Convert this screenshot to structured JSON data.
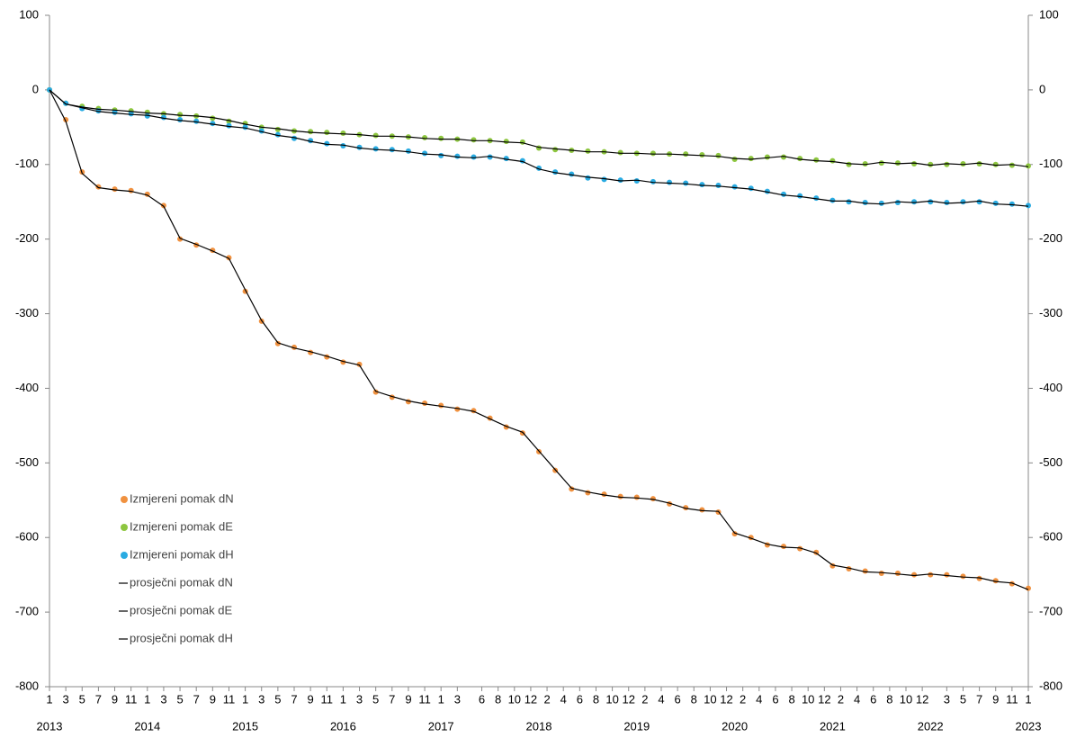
{
  "chart_data": {
    "type": "scatter",
    "x": [
      "2013-01",
      "2013-03",
      "2013-05",
      "2013-07",
      "2013-09",
      "2013-11",
      "2014-01",
      "2014-03",
      "2014-05",
      "2014-07",
      "2014-09",
      "2014-11",
      "2015-01",
      "2015-03",
      "2015-05",
      "2015-07",
      "2015-09",
      "2015-11",
      "2016-01",
      "2016-03",
      "2016-05",
      "2016-07",
      "2016-09",
      "2016-11",
      "2017-01",
      "2017-03",
      "2017-05",
      "2017-07",
      "2017-09",
      "2017-11",
      "2018-01",
      "2018-03",
      "2018-05",
      "2018-07",
      "2018-09",
      "2018-11",
      "2019-01",
      "2019-03",
      "2019-05",
      "2019-07",
      "2019-09",
      "2019-11",
      "2020-01",
      "2020-03",
      "2020-05",
      "2020-07",
      "2020-09",
      "2020-11",
      "2021-01",
      "2021-03",
      "2021-05",
      "2021-07",
      "2021-09",
      "2021-11",
      "2022-01",
      "2022-03",
      "2022-05",
      "2022-07",
      "2022-09",
      "2022-11",
      "2023-01"
    ],
    "xlim": [
      "2013-01",
      "2023-01"
    ],
    "xticks": [
      {
        "value": "2013-01",
        "label": "1"
      },
      {
        "value": "2013-03",
        "label": "3"
      },
      {
        "value": "2013-05",
        "label": "5"
      },
      {
        "value": "2013-07",
        "label": "7"
      },
      {
        "value": "2013-09",
        "label": "9"
      },
      {
        "value": "2013-11",
        "label": "11"
      },
      {
        "value": "2014-01",
        "label": "1"
      },
      {
        "value": "2014-03",
        "label": "3"
      },
      {
        "value": "2014-05",
        "label": "5"
      },
      {
        "value": "2014-07",
        "label": "7"
      },
      {
        "value": "2014-09",
        "label": "9"
      },
      {
        "value": "2014-11",
        "label": "11"
      },
      {
        "value": "2015-01",
        "label": "1"
      },
      {
        "value": "2015-03",
        "label": "3"
      },
      {
        "value": "2015-05",
        "label": "5"
      },
      {
        "value": "2015-07",
        "label": "7"
      },
      {
        "value": "2015-09",
        "label": "9"
      },
      {
        "value": "2015-11",
        "label": "11"
      },
      {
        "value": "2016-01",
        "label": "1"
      },
      {
        "value": "2016-03",
        "label": "3"
      },
      {
        "value": "2016-05",
        "label": "5"
      },
      {
        "value": "2016-07",
        "label": "7"
      },
      {
        "value": "2016-09",
        "label": "9"
      },
      {
        "value": "2016-11",
        "label": "11"
      },
      {
        "value": "2017-01",
        "label": "1"
      },
      {
        "value": "2017-03",
        "label": "3"
      },
      {
        "value": "2017-06",
        "label": "6"
      },
      {
        "value": "2017-08",
        "label": "8"
      },
      {
        "value": "2017-10",
        "label": "10"
      },
      {
        "value": "2017-12",
        "label": "12"
      },
      {
        "value": "2018-02",
        "label": "2"
      },
      {
        "value": "2018-04",
        "label": "4"
      },
      {
        "value": "2018-06",
        "label": "6"
      },
      {
        "value": "2018-08",
        "label": "8"
      },
      {
        "value": "2018-10",
        "label": "10"
      },
      {
        "value": "2018-12",
        "label": "12"
      },
      {
        "value": "2019-02",
        "label": "2"
      },
      {
        "value": "2019-04",
        "label": "4"
      },
      {
        "value": "2019-06",
        "label": "6"
      },
      {
        "value": "2019-08",
        "label": "8"
      },
      {
        "value": "2019-10",
        "label": "10"
      },
      {
        "value": "2019-12",
        "label": "12"
      },
      {
        "value": "2020-02",
        "label": "2"
      },
      {
        "value": "2020-04",
        "label": "4"
      },
      {
        "value": "2020-06",
        "label": "6"
      },
      {
        "value": "2020-08",
        "label": "8"
      },
      {
        "value": "2020-10",
        "label": "10"
      },
      {
        "value": "2020-12",
        "label": "12"
      },
      {
        "value": "2021-02",
        "label": "2"
      },
      {
        "value": "2021-04",
        "label": "4"
      },
      {
        "value": "2021-06",
        "label": "6"
      },
      {
        "value": "2021-08",
        "label": "8"
      },
      {
        "value": "2021-10",
        "label": "10"
      },
      {
        "value": "2021-12",
        "label": "12"
      },
      {
        "value": "2022-03",
        "label": "3"
      },
      {
        "value": "2022-05",
        "label": "5"
      },
      {
        "value": "2022-07",
        "label": "7"
      },
      {
        "value": "2022-09",
        "label": "9"
      },
      {
        "value": "2022-11",
        "label": "11"
      },
      {
        "value": "2023-01",
        "label": "1"
      }
    ],
    "year_labels": [
      {
        "value": "2013-01",
        "label": "2013"
      },
      {
        "value": "2014-01",
        "label": "2014"
      },
      {
        "value": "2015-01",
        "label": "2015"
      },
      {
        "value": "2016-01",
        "label": "2016"
      },
      {
        "value": "2017-01",
        "label": "2017"
      },
      {
        "value": "2018-01",
        "label": "2018"
      },
      {
        "value": "2019-01",
        "label": "2019"
      },
      {
        "value": "2020-01",
        "label": "2020"
      },
      {
        "value": "2021-01",
        "label": "2021"
      },
      {
        "value": "2022-01",
        "label": "2022"
      },
      {
        "value": "2023-01",
        "label": "2023"
      }
    ],
    "ylim": [
      -800,
      100
    ],
    "yticks": [
      -800,
      -700,
      -600,
      -500,
      -400,
      -300,
      -200,
      -100,
      0,
      100
    ],
    "y2lim": [
      -800,
      100
    ],
    "y2ticks": [
      -800,
      -700,
      -600,
      -500,
      -400,
      -300,
      -200,
      -100,
      0,
      100
    ],
    "legend": "lower-left",
    "series": [
      {
        "name": "Izmjereni pomak dN",
        "type": "scatter",
        "color": "#f0913f",
        "values": [
          0,
          -40,
          -110,
          -130,
          -133,
          -135,
          -140,
          -155,
          -200,
          -208,
          -215,
          -225,
          -270,
          -310,
          -340,
          -345,
          -352,
          -358,
          -365,
          -368,
          -405,
          -412,
          -418,
          -420,
          -423,
          -428,
          -430,
          -440,
          -452,
          -460,
          -485,
          -510,
          -535,
          -540,
          -542,
          -545,
          -546,
          -548,
          -555,
          -560,
          -563,
          -566,
          -595,
          -600,
          -610,
          -612,
          -615,
          -620,
          -638,
          -642,
          -645,
          -648,
          -648,
          -650,
          -650,
          -650,
          -652,
          -655,
          -658,
          -662,
          -668
        ]
      },
      {
        "name": "Izmjereni pomak dE",
        "type": "scatter",
        "color": "#8dc63f",
        "values": [
          0,
          -18,
          -22,
          -25,
          -27,
          -28,
          -30,
          -32,
          -33,
          -35,
          -38,
          -42,
          -45,
          -50,
          -53,
          -55,
          -56,
          -57,
          -58,
          -60,
          -61,
          -62,
          -63,
          -64,
          -65,
          -66,
          -67,
          -68,
          -69,
          -70,
          -78,
          -80,
          -81,
          -82,
          -83,
          -84,
          -85,
          -85,
          -86,
          -86,
          -87,
          -88,
          -93,
          -92,
          -90,
          -90,
          -92,
          -94,
          -95,
          -100,
          -99,
          -98,
          -98,
          -99,
          -100,
          -100,
          -99,
          -99,
          -100,
          -101,
          -102
        ]
      },
      {
        "name": "Izmjereni pomak dH",
        "type": "scatter",
        "color": "#29abe2",
        "values": [
          0,
          -18,
          -25,
          -28,
          -30,
          -32,
          -35,
          -37,
          -40,
          -42,
          -45,
          -48,
          -50,
          -55,
          -60,
          -65,
          -68,
          -72,
          -75,
          -77,
          -79,
          -80,
          -82,
          -85,
          -88,
          -89,
          -90,
          -90,
          -92,
          -95,
          -105,
          -110,
          -113,
          -118,
          -120,
          -121,
          -122,
          -123,
          -124,
          -125,
          -127,
          -128,
          -130,
          -132,
          -136,
          -140,
          -142,
          -145,
          -148,
          -150,
          -151,
          -152,
          -151,
          -150,
          -150,
          -151,
          -150,
          -150,
          -152,
          -153,
          -155
        ]
      },
      {
        "name": "prosječni pomak dN",
        "type": "line",
        "color": "#000000",
        "values": [
          0,
          -42,
          -112,
          -131,
          -134,
          -136,
          -141,
          -156,
          -199,
          -207,
          -216,
          -226,
          -268,
          -309,
          -339,
          -346,
          -351,
          -357,
          -364,
          -369,
          -404,
          -411,
          -417,
          -421,
          -424,
          -427,
          -431,
          -441,
          -451,
          -459,
          -484,
          -509,
          -534,
          -539,
          -543,
          -546,
          -547,
          -549,
          -554,
          -561,
          -564,
          -565,
          -594,
          -601,
          -609,
          -613,
          -614,
          -621,
          -637,
          -641,
          -646,
          -647,
          -649,
          -651,
          -649,
          -651,
          -653,
          -654,
          -659,
          -661,
          -670
        ]
      },
      {
        "name": "prosječni pomak dE",
        "type": "line",
        "color": "#000000",
        "values": [
          0,
          -19,
          -23,
          -26,
          -27,
          -29,
          -31,
          -32,
          -34,
          -35,
          -37,
          -41,
          -46,
          -50,
          -52,
          -55,
          -57,
          -58,
          -59,
          -60,
          -62,
          -62,
          -63,
          -65,
          -66,
          -66,
          -68,
          -68,
          -70,
          -71,
          -77,
          -79,
          -81,
          -83,
          -83,
          -85,
          -85,
          -86,
          -86,
          -87,
          -88,
          -89,
          -92,
          -93,
          -91,
          -89,
          -93,
          -95,
          -96,
          -99,
          -100,
          -97,
          -99,
          -98,
          -101,
          -99,
          -100,
          -98,
          -101,
          -100,
          -103
        ]
      },
      {
        "name": "prosječni pomak dH",
        "type": "line",
        "color": "#000000",
        "values": [
          0,
          -19,
          -24,
          -29,
          -31,
          -33,
          -34,
          -38,
          -41,
          -43,
          -46,
          -49,
          -51,
          -56,
          -61,
          -64,
          -69,
          -73,
          -74,
          -78,
          -80,
          -81,
          -83,
          -86,
          -87,
          -90,
          -91,
          -89,
          -93,
          -96,
          -106,
          -111,
          -114,
          -117,
          -119,
          -122,
          -121,
          -124,
          -125,
          -126,
          -128,
          -129,
          -131,
          -133,
          -137,
          -141,
          -143,
          -146,
          -149,
          -149,
          -152,
          -153,
          -150,
          -151,
          -149,
          -152,
          -151,
          -149,
          -153,
          -154,
          -156
        ]
      }
    ]
  }
}
